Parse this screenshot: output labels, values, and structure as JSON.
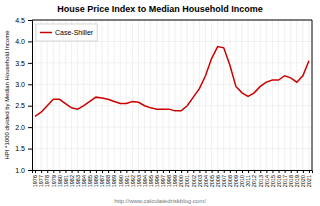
{
  "chart_data": {
    "type": "line",
    "title": "House Price Index to Median Household Income",
    "xlabel": "http://www.calculatedriskblog.com/",
    "ylabel": "HPI *1000 divided by Median Household Income",
    "x": [
      1976,
      1977,
      1978,
      1979,
      1980,
      1981,
      1982,
      1983,
      1984,
      1985,
      1986,
      1987,
      1988,
      1989,
      1990,
      1991,
      1992,
      1993,
      1994,
      1995,
      1996,
      1997,
      1998,
      1999,
      2000,
      2001,
      2002,
      2003,
      2004,
      2005,
      2006,
      2007,
      2008,
      2009,
      2010,
      2011,
      2012,
      2013,
      2014,
      2015,
      2016,
      2017,
      2018,
      2019,
      2020,
      2021
    ],
    "series": [
      {
        "name": "Case-Shiller",
        "color": "#cc0000",
        "values": [
          2.25,
          2.35,
          2.5,
          2.65,
          2.65,
          2.55,
          2.45,
          2.42,
          2.5,
          2.6,
          2.7,
          2.68,
          2.65,
          2.6,
          2.55,
          2.55,
          2.6,
          2.58,
          2.5,
          2.45,
          2.42,
          2.42,
          2.42,
          2.38,
          2.38,
          2.5,
          2.7,
          2.9,
          3.2,
          3.6,
          3.88,
          3.85,
          3.45,
          2.95,
          2.8,
          2.72,
          2.8,
          2.95,
          3.05,
          3.1,
          3.1,
          3.2,
          3.15,
          3.05,
          3.2,
          3.55
        ]
      }
    ],
    "xlim": [
      1975.5,
      2021.5
    ],
    "xticks": [
      1976,
      1977,
      1978,
      1979,
      1980,
      1981,
      1982,
      1983,
      1984,
      1985,
      1986,
      1987,
      1988,
      1989,
      1990,
      1991,
      1992,
      1993,
      1994,
      1995,
      1996,
      1997,
      1998,
      1999,
      2000,
      2001,
      2002,
      2003,
      2004,
      2005,
      2006,
      2007,
      2008,
      2009,
      2010,
      2011,
      2012,
      2013,
      2014,
      2015,
      2016,
      2017,
      2018,
      2019,
      2020,
      2021
    ],
    "ylim": [
      1.0,
      4.5
    ],
    "yticks": [
      {
        "value": 1.0,
        "label": "1.0"
      },
      1.5,
      {
        "value": 2.0,
        "label": "2.0"
      },
      2.5,
      {
        "value": 3.0,
        "label": "3.0"
      },
      3.5,
      {
        "value": 4.0,
        "label": "4.0"
      },
      4.5
    ],
    "grid": true,
    "legend": "upper-left"
  }
}
